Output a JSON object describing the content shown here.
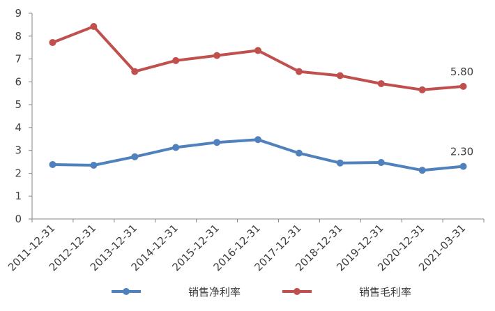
{
  "chart_data": {
    "type": "line",
    "categories": [
      "2011-12-31",
      "2012-12-31",
      "2013-12-31",
      "2014-12-31",
      "2015-12-31",
      "2016-12-31",
      "2017-12-31",
      "2018-12-31",
      "2019-12-31",
      "2020-12-31",
      "2021-03-31"
    ],
    "series": [
      {
        "name": "销售净利率",
        "color": "#4f81bd",
        "values": [
          2.38,
          2.35,
          2.72,
          3.13,
          3.35,
          3.47,
          2.88,
          2.45,
          2.47,
          2.13,
          2.3
        ]
      },
      {
        "name": "销售毛利率",
        "color": "#c0504d",
        "values": [
          7.72,
          8.42,
          6.45,
          6.93,
          7.15,
          7.37,
          6.45,
          6.27,
          5.92,
          5.65,
          5.8
        ]
      }
    ],
    "ylim": [
      0,
      9
    ],
    "yticks": [
      "0",
      "1",
      "2",
      "3",
      "4",
      "5",
      "6",
      "7",
      "8",
      "9"
    ],
    "data_labels": [
      {
        "series": 1,
        "index": 10,
        "text": "5.80"
      },
      {
        "series": 0,
        "index": 10,
        "text": "2.30"
      }
    ],
    "grid": false,
    "legend_position": "bottom"
  }
}
